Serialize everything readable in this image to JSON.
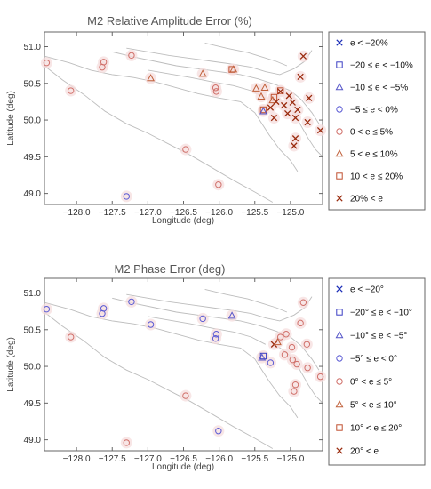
{
  "colors": {
    "lt_m20": "#1d2fb8",
    "m20_m10": "#3b3fc4",
    "m10_m5": "#5555c8",
    "m5_0": "#5a5ad4",
    "p0_5": "#d0706a",
    "p5_10": "#c0603a",
    "p10_20": "#c05030",
    "gt20": "#9a2b0e",
    "coast": "#bdbdbd",
    "halo": "#f6dede"
  },
  "chart_data": [
    {
      "type": "scatter",
      "title": "M2 Relative Amplitude Error (%)",
      "xlabel": "Longitude (deg)",
      "ylabel": "Latitude (deg)",
      "xlim": [
        -128.45,
        -124.55
      ],
      "ylim": [
        48.85,
        51.2
      ],
      "xticks": [
        "-128.0",
        "-127.5",
        "-127.0",
        "-126.5",
        "-126.0",
        "-125.5",
        "-125.0"
      ],
      "yticks": [
        "49.0",
        "49.5",
        "50.0",
        "50.5",
        "51.0"
      ],
      "legend": {
        "placement": "right",
        "entries": [
          {
            "key": "lt_m20",
            "marker": "x",
            "label": "e < −20%"
          },
          {
            "key": "m20_m10",
            "marker": "square",
            "label": "−20 ≤ e < −10%"
          },
          {
            "key": "m10_m5",
            "marker": "triangle",
            "label": "−10 ≤ e < −5%"
          },
          {
            "key": "m5_0",
            "marker": "circle",
            "label": "−5 ≤ e < 0%"
          },
          {
            "key": "p0_5",
            "marker": "circle",
            "label": "0 < e ≤ 5%"
          },
          {
            "key": "p5_10",
            "marker": "triangle",
            "label": "5 < e ≤ 10%"
          },
          {
            "key": "p10_20",
            "marker": "square",
            "label": "10 < e ≤ 20%"
          },
          {
            "key": "gt20",
            "marker": "x",
            "label": "20% < e"
          }
        ]
      },
      "points": [
        {
          "x": -128.42,
          "y": 50.78,
          "cat": "p0_5"
        },
        {
          "x": -127.62,
          "y": 50.79,
          "cat": "p0_5"
        },
        {
          "x": -127.64,
          "y": 50.72,
          "cat": "p0_5"
        },
        {
          "x": -127.23,
          "y": 50.88,
          "cat": "p0_5"
        },
        {
          "x": -128.08,
          "y": 50.4,
          "cat": "p0_5"
        },
        {
          "x": -126.96,
          "y": 50.57,
          "cat": "p5_10"
        },
        {
          "x": -126.23,
          "y": 50.63,
          "cat": "p5_10"
        },
        {
          "x": -125.82,
          "y": 50.69,
          "cat": "p10_20"
        },
        {
          "x": -125.8,
          "y": 50.69,
          "cat": "p5_10"
        },
        {
          "x": -126.05,
          "y": 50.44,
          "cat": "p0_5"
        },
        {
          "x": -126.04,
          "y": 50.39,
          "cat": "p0_5"
        },
        {
          "x": -126.47,
          "y": 49.6,
          "cat": "p0_5"
        },
        {
          "x": -126.01,
          "y": 49.12,
          "cat": "p0_5"
        },
        {
          "x": -127.3,
          "y": 48.96,
          "cat": "m5_0"
        },
        {
          "x": -125.48,
          "y": 50.43,
          "cat": "p5_10"
        },
        {
          "x": -125.36,
          "y": 50.44,
          "cat": "p5_10"
        },
        {
          "x": -125.41,
          "y": 50.32,
          "cat": "p5_10"
        },
        {
          "x": -125.23,
          "y": 50.31,
          "cat": "p10_20"
        },
        {
          "x": -125.25,
          "y": 50.27,
          "cat": "p5_10"
        },
        {
          "x": -125.14,
          "y": 50.4,
          "cat": "p10_20"
        },
        {
          "x": -125.38,
          "y": 50.14,
          "cat": "p10_20"
        },
        {
          "x": -125.38,
          "y": 50.12,
          "cat": "m10_m5"
        },
        {
          "x": -124.82,
          "y": 50.87,
          "cat": "gt20"
        },
        {
          "x": -124.86,
          "y": 50.59,
          "cat": "gt20"
        },
        {
          "x": -125.14,
          "y": 50.39,
          "cat": "gt20"
        },
        {
          "x": -125.2,
          "y": 50.25,
          "cat": "gt20"
        },
        {
          "x": -125.09,
          "y": 50.2,
          "cat": "gt20"
        },
        {
          "x": -125.02,
          "y": 50.33,
          "cat": "gt20"
        },
        {
          "x": -124.97,
          "y": 50.24,
          "cat": "gt20"
        },
        {
          "x": -124.9,
          "y": 50.14,
          "cat": "gt20"
        },
        {
          "x": -124.74,
          "y": 50.3,
          "cat": "gt20"
        },
        {
          "x": -125.28,
          "y": 50.17,
          "cat": "gt20"
        },
        {
          "x": -125.04,
          "y": 50.09,
          "cat": "gt20"
        },
        {
          "x": -125.23,
          "y": 50.03,
          "cat": "gt20"
        },
        {
          "x": -124.93,
          "y": 50.03,
          "cat": "gt20"
        },
        {
          "x": -124.76,
          "y": 49.97,
          "cat": "gt20"
        },
        {
          "x": -124.93,
          "y": 49.75,
          "cat": "gt20"
        },
        {
          "x": -124.95,
          "y": 49.65,
          "cat": "gt20"
        },
        {
          "x": -124.58,
          "y": 49.86,
          "cat": "gt20"
        }
      ]
    },
    {
      "type": "scatter",
      "title": "M2 Phase Error (deg)",
      "xlabel": "Longitude (deg)",
      "ylabel": "Latitude (deg)",
      "xlim": [
        -128.45,
        -124.55
      ],
      "ylim": [
        48.85,
        51.2
      ],
      "xticks": [
        "-128.0",
        "-127.5",
        "-127.0",
        "-126.5",
        "-126.0",
        "-125.5",
        "-125.0"
      ],
      "yticks": [
        "49.0",
        "49.5",
        "50.0",
        "50.5",
        "51.0"
      ],
      "legend": {
        "placement": "right",
        "entries": [
          {
            "key": "lt_m20",
            "marker": "x",
            "label": "e < −20°"
          },
          {
            "key": "m20_m10",
            "marker": "square",
            "label": "−20° ≤ e < −10°"
          },
          {
            "key": "m10_m5",
            "marker": "triangle",
            "label": "−10° ≤ e < −5°"
          },
          {
            "key": "m5_0",
            "marker": "circle",
            "label": "−5° ≤ e < 0°"
          },
          {
            "key": "p0_5",
            "marker": "circle",
            "label": "0° < e ≤ 5°"
          },
          {
            "key": "p5_10",
            "marker": "triangle",
            "label": "5° < e ≤ 10°"
          },
          {
            "key": "p10_20",
            "marker": "square",
            "label": "10° < e ≤ 20°"
          },
          {
            "key": "gt20",
            "marker": "x",
            "label": "20° < e"
          }
        ]
      },
      "points": [
        {
          "x": -128.42,
          "y": 50.78,
          "cat": "m5_0"
        },
        {
          "x": -127.62,
          "y": 50.79,
          "cat": "m5_0"
        },
        {
          "x": -127.64,
          "y": 50.72,
          "cat": "m5_0"
        },
        {
          "x": -127.23,
          "y": 50.88,
          "cat": "m5_0"
        },
        {
          "x": -126.96,
          "y": 50.57,
          "cat": "m5_0"
        },
        {
          "x": -126.23,
          "y": 50.65,
          "cat": "m5_0"
        },
        {
          "x": -125.82,
          "y": 50.69,
          "cat": "m10_m5"
        },
        {
          "x": -126.04,
          "y": 50.44,
          "cat": "m5_0"
        },
        {
          "x": -126.05,
          "y": 50.38,
          "cat": "m5_0"
        },
        {
          "x": -128.08,
          "y": 50.4,
          "cat": "p0_5"
        },
        {
          "x": -126.47,
          "y": 49.6,
          "cat": "p0_5"
        },
        {
          "x": -126.01,
          "y": 49.12,
          "cat": "m5_0"
        },
        {
          "x": -127.3,
          "y": 48.96,
          "cat": "p0_5"
        },
        {
          "x": -125.38,
          "y": 50.14,
          "cat": "m20_m10"
        },
        {
          "x": -125.4,
          "y": 50.12,
          "cat": "m10_m5"
        },
        {
          "x": -125.28,
          "y": 50.05,
          "cat": "m5_0"
        },
        {
          "x": -125.23,
          "y": 50.3,
          "cat": "gt20"
        },
        {
          "x": -125.18,
          "y": 50.33,
          "cat": "p5_10"
        },
        {
          "x": -125.14,
          "y": 50.4,
          "cat": "p0_5"
        },
        {
          "x": -125.06,
          "y": 50.44,
          "cat": "p0_5"
        },
        {
          "x": -124.82,
          "y": 50.87,
          "cat": "p0_5"
        },
        {
          "x": -124.86,
          "y": 50.59,
          "cat": "p0_5"
        },
        {
          "x": -124.98,
          "y": 50.26,
          "cat": "p0_5"
        },
        {
          "x": -125.08,
          "y": 50.16,
          "cat": "p0_5"
        },
        {
          "x": -124.97,
          "y": 50.09,
          "cat": "p0_5"
        },
        {
          "x": -124.77,
          "y": 50.3,
          "cat": "p0_5"
        },
        {
          "x": -124.91,
          "y": 50.03,
          "cat": "p0_5"
        },
        {
          "x": -124.76,
          "y": 49.98,
          "cat": "p0_5"
        },
        {
          "x": -124.93,
          "y": 49.75,
          "cat": "p0_5"
        },
        {
          "x": -124.95,
          "y": 49.66,
          "cat": "p0_5"
        },
        {
          "x": -124.58,
          "y": 49.86,
          "cat": "p0_5"
        }
      ]
    }
  ]
}
